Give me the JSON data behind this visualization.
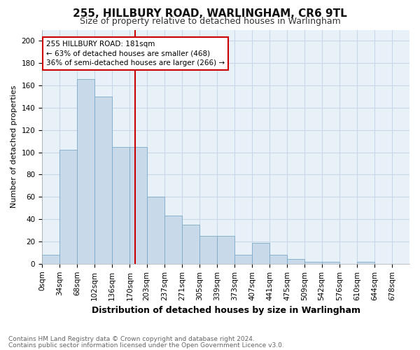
{
  "title": "255, HILLBURY ROAD, WARLINGHAM, CR6 9TL",
  "subtitle": "Size of property relative to detached houses in Warlingham",
  "xlabel": "Distribution of detached houses by size in Warlingham",
  "ylabel": "Number of detached properties",
  "footnote1": "Contains HM Land Registry data © Crown copyright and database right 2024.",
  "footnote2": "Contains public sector information licensed under the Open Government Licence v3.0.",
  "bar_color": "#c8d9ea",
  "bar_edge_color": "#7baac8",
  "grid_color": "#c8d8e8",
  "bg_color": "#e8f0f8",
  "fig_bg_color": "#ffffff",
  "annotation_text": "255 HILLBURY ROAD: 181sqm\n← 63% of detached houses are smaller (468)\n36% of semi-detached houses are larger (266) →",
  "vline_x": 181,
  "annotation_box_color": "#ffffff",
  "annotation_box_edge_color": "#cc0000",
  "annotation_text_color": "#000000",
  "vline_color": "#cc0000",
  "categories": [
    "0sqm",
    "34sqm",
    "68sqm",
    "102sqm",
    "136sqm",
    "170sqm",
    "203sqm",
    "237sqm",
    "271sqm",
    "305sqm",
    "339sqm",
    "373sqm",
    "407sqm",
    "441sqm",
    "475sqm",
    "509sqm",
    "542sqm",
    "576sqm",
    "610sqm",
    "644sqm",
    "678sqm"
  ],
  "bin_edges": [
    0,
    34,
    68,
    102,
    136,
    170,
    203,
    237,
    271,
    305,
    339,
    373,
    407,
    441,
    475,
    509,
    542,
    576,
    610,
    644,
    678,
    712
  ],
  "values": [
    8,
    102,
    166,
    150,
    105,
    105,
    60,
    43,
    35,
    25,
    25,
    8,
    19,
    8,
    4,
    2,
    2,
    0,
    2,
    0,
    0
  ],
  "ylim": [
    0,
    210
  ],
  "yticks": [
    0,
    20,
    40,
    60,
    80,
    100,
    120,
    140,
    160,
    180,
    200
  ],
  "title_fontsize": 11,
  "subtitle_fontsize": 9,
  "xlabel_fontsize": 9,
  "ylabel_fontsize": 8,
  "tick_fontsize": 7.5,
  "footnote_fontsize": 6.5
}
